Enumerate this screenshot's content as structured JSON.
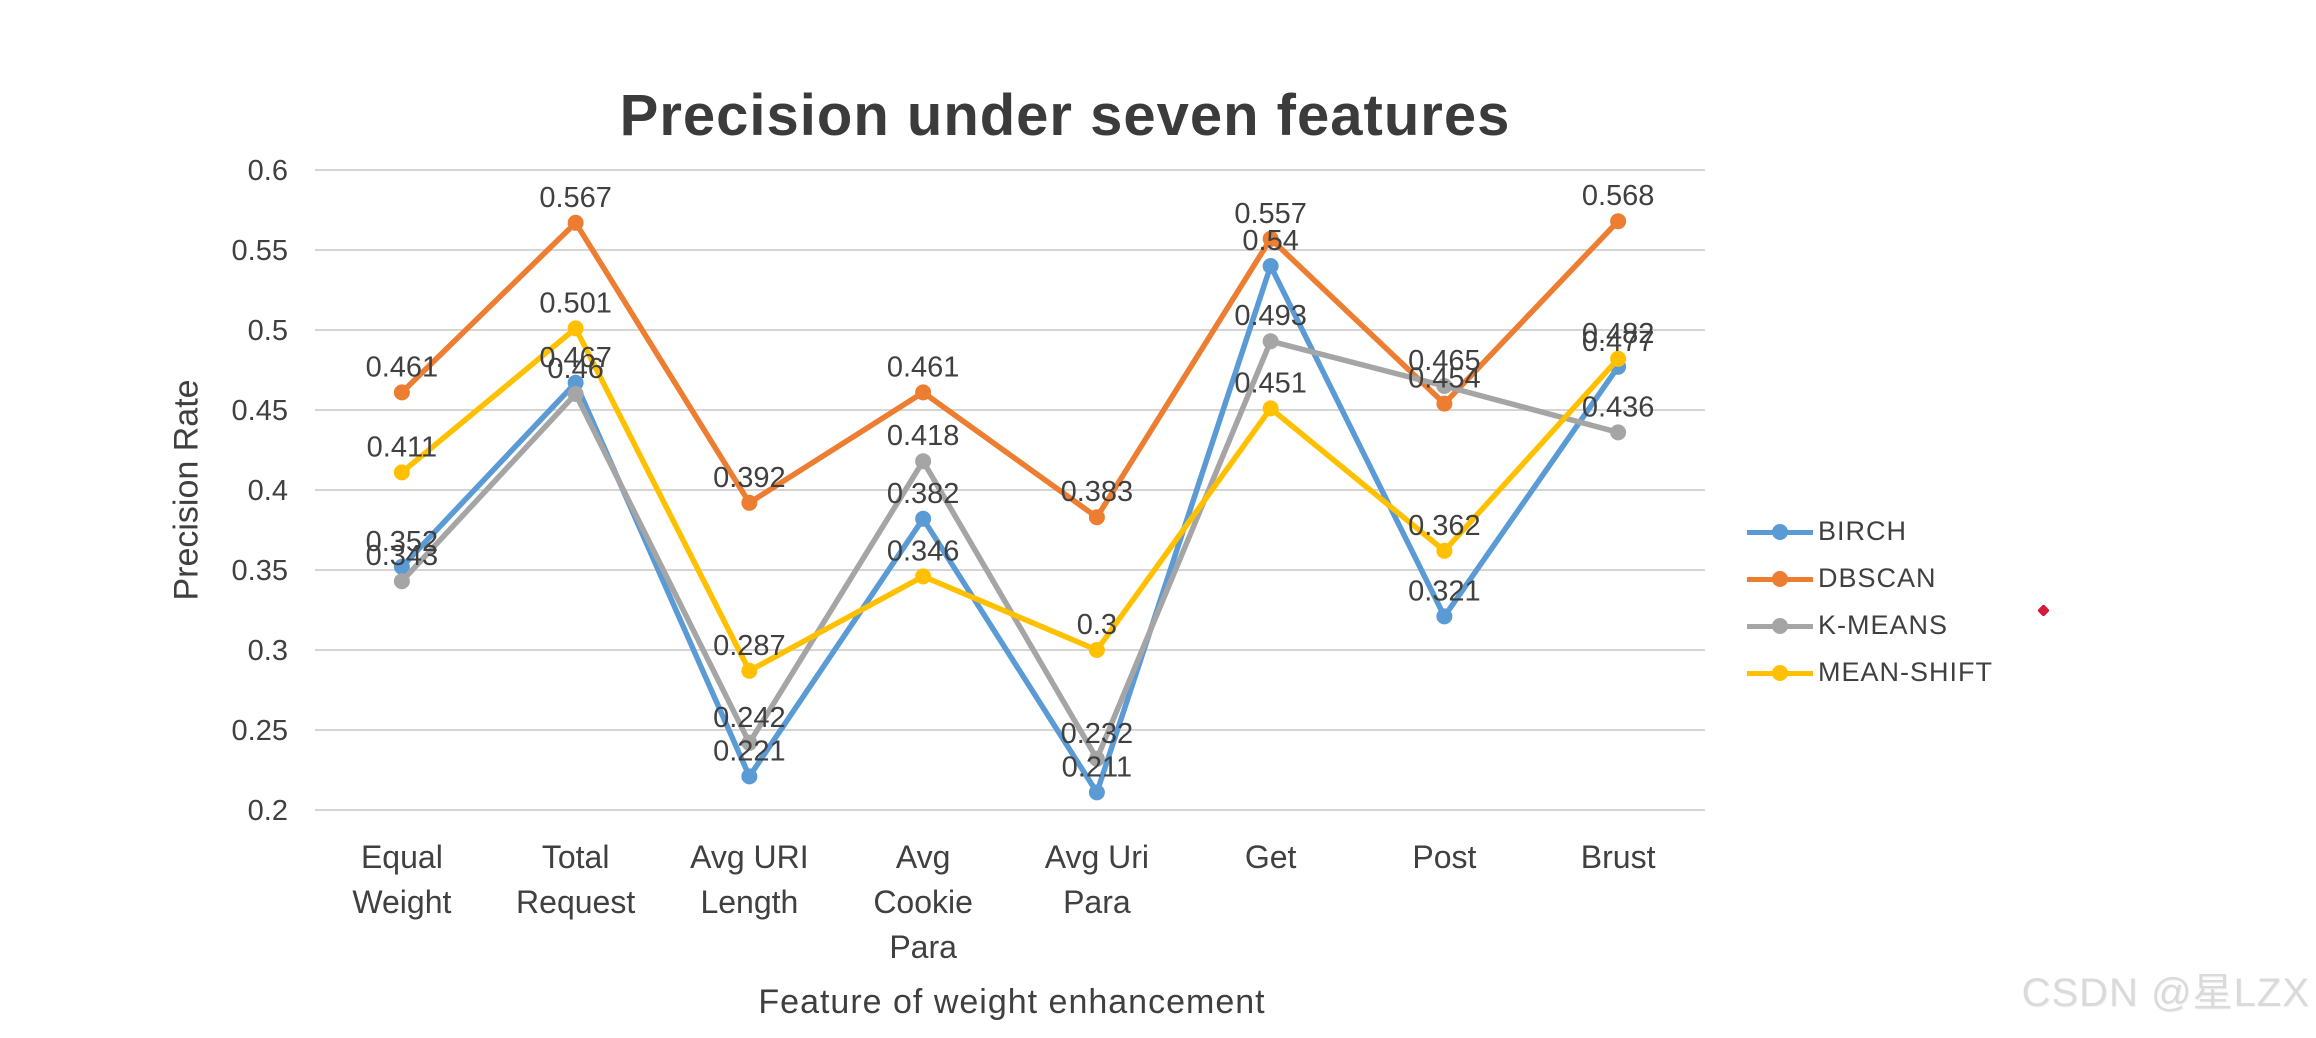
{
  "title": "Precision under seven features",
  "y_axis_title": "Precision Rate",
  "x_axis_title": "Feature of weight enhancement",
  "watermark": "CSDN @星LZX",
  "cursor_dot_color": "#d41a3d",
  "colors": {
    "gridline": "#d5d5d5",
    "axis_text": "#404040",
    "title_text": "#3b3b3b",
    "watermark_text": "#dadada"
  },
  "chart_data": {
    "type": "line",
    "title": "Precision under seven features",
    "xlabel": "Feature of weight enhancement",
    "ylabel": "Precision Rate",
    "categories": [
      "Equal Weight",
      "Total Request",
      "Avg URI Length",
      "Avg Cookie Para",
      "Avg Uri Para",
      "Get",
      "Post",
      "Brust"
    ],
    "category_label_lines": [
      [
        "Equal",
        "Weight"
      ],
      [
        "Total",
        "Request"
      ],
      [
        "Avg URI",
        "Length"
      ],
      [
        "Avg",
        "Cookie",
        "Para"
      ],
      [
        "Avg Uri",
        "Para"
      ],
      [
        "Get"
      ],
      [
        "Post"
      ],
      [
        "Brust"
      ]
    ],
    "series": [
      {
        "name": "BIRCH",
        "color": "#5b9bd5",
        "values": [
          0.352,
          0.467,
          0.221,
          0.382,
          0.211,
          0.54,
          0.321,
          0.477
        ]
      },
      {
        "name": "DBSCAN",
        "color": "#ed7d31",
        "values": [
          0.461,
          0.567,
          0.392,
          0.461,
          0.383,
          0.557,
          0.454,
          0.568
        ]
      },
      {
        "name": "K-MEANS",
        "color": "#a5a5a5",
        "values": [
          0.343,
          0.46,
          0.242,
          0.418,
          0.232,
          0.493,
          0.465,
          0.436
        ]
      },
      {
        "name": "MEAN-SHIFT",
        "color": "#ffc000",
        "values": [
          0.411,
          0.501,
          0.287,
          0.346,
          0.3,
          0.451,
          0.362,
          0.482
        ]
      }
    ],
    "y_ticks": [
      "0.6",
      "0.55",
      "0.5",
      "0.45",
      "0.4",
      "0.35",
      "0.3",
      "0.25",
      "0.2"
    ],
    "ylim": [
      0.2,
      0.6
    ],
    "grid": true,
    "data_labels": true,
    "legend_position": "right",
    "marker": "circle"
  }
}
